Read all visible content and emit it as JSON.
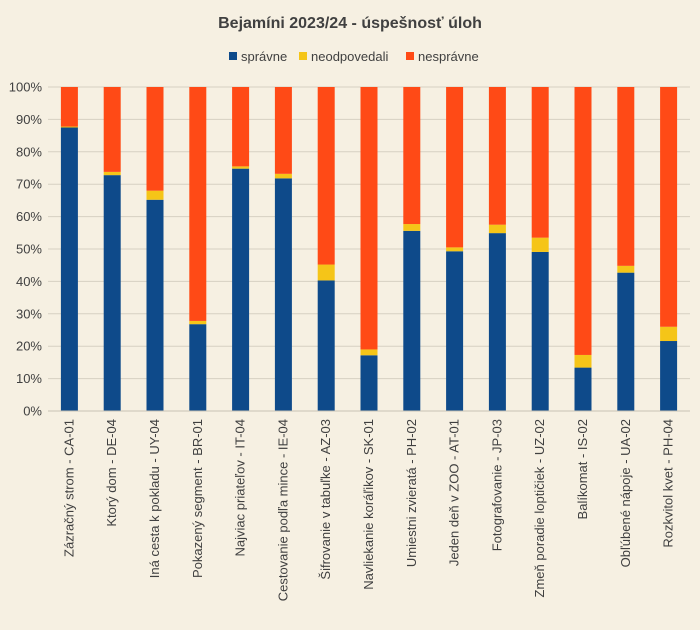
{
  "chart_data": {
    "type": "bar",
    "stacked": "percent",
    "title": "Bejamíni 2023/24 - úspešnosť úloh",
    "xlabel": "",
    "ylabel": "",
    "ylim": [
      0,
      100
    ],
    "y_ticks": [
      "0%",
      "10%",
      "20%",
      "30%",
      "40%",
      "50%",
      "60%",
      "70%",
      "80%",
      "90%",
      "100%"
    ],
    "grid": true,
    "legend_position": "top",
    "categories": [
      "Zázračný strom - CA-01",
      "Ktorý dom - DE-04",
      "Iná cesta k pokladu - UY-04",
      "Pokazený segment - BR-01",
      "Najviac priateľov - IT-04",
      "Cestovanie podľa mince - IE-04",
      "Šifrovanie v tabuľke - AZ-03",
      "Navliekanie koráľikov - SK-01",
      "Umiestni zvieratá - PH-02",
      "Jeden deň v ZOO - AT-01",
      "Fotografovanie - JP-03",
      "Zmeň poradie loptičiek - UZ-02",
      "Balíkomat - IS-02",
      "Obľúbené nápoje - UA-02",
      "Rozkvitol kvet - PH-04"
    ],
    "series": [
      {
        "name": "správne",
        "color": "#0e4a8a",
        "values": [
          87.5,
          72.8,
          65.2,
          26.8,
          74.8,
          71.8,
          40.3,
          17.2,
          55.6,
          49.3,
          54.9,
          49.1,
          13.4,
          42.7,
          21.6
        ]
      },
      {
        "name": "neodpovedali",
        "color": "#f5c518",
        "values": [
          0.3,
          1.0,
          2.8,
          1.0,
          0.7,
          1.4,
          4.9,
          1.8,
          2.1,
          1.2,
          2.6,
          4.4,
          3.9,
          2.1,
          4.4
        ]
      },
      {
        "name": "nesprávne",
        "color": "#ff4a16",
        "values": [
          12.2,
          26.2,
          32.0,
          72.2,
          24.5,
          26.8,
          54.8,
          81.0,
          42.3,
          49.5,
          42.5,
          46.5,
          82.7,
          55.2,
          74.0
        ]
      }
    ]
  }
}
